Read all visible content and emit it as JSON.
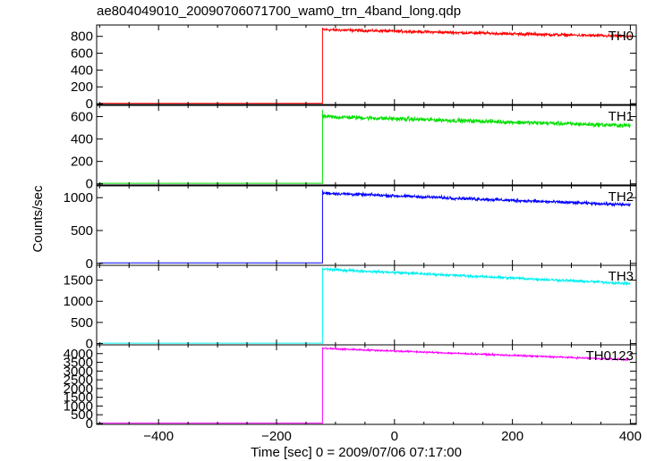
{
  "chart_data": {
    "type": "line",
    "title": "ae804049010_20090706071700_wam0_trn_4band_long.qdp",
    "xlabel": "Time [sec] 0 = 2009/07/06 07:17:00",
    "ylabel": "Counts/sec",
    "xlim": [
      -505,
      410
    ],
    "xticks": [
      -400,
      -200,
      0,
      200,
      400
    ],
    "xtick_labels": [
      "−400",
      "−200",
      "0",
      "200",
      "400"
    ],
    "grid": false,
    "legend": "none",
    "panels": [
      {
        "name": "TH0",
        "color": "#ff0000",
        "ylim": [
          -10,
          935
        ],
        "yticks": [
          0,
          200,
          400,
          600,
          800
        ],
        "x_start": -500,
        "x_jump": -122,
        "x_end": 400,
        "pre_level": 5,
        "post_start": 880,
        "post_end": 800,
        "noise": 25,
        "spike": 900
      },
      {
        "name": "TH1",
        "color": "#00e000",
        "ylim": [
          -10,
          700
        ],
        "yticks": [
          0,
          200,
          400,
          600
        ],
        "x_start": -500,
        "x_jump": -122,
        "x_end": 400,
        "pre_level": 5,
        "post_start": 600,
        "post_end": 520,
        "noise": 28,
        "spike": 660
      },
      {
        "name": "TH2",
        "color": "#0000ff",
        "ylim": [
          -30,
          1180
        ],
        "yticks": [
          0,
          500,
          1000
        ],
        "x_start": -500,
        "x_jump": -122,
        "x_end": 400,
        "pre_level": 8,
        "post_start": 1070,
        "post_end": 890,
        "noise": 35,
        "spike": 1120
      },
      {
        "name": "TH3",
        "color": "#00f0f0",
        "ylim": [
          -30,
          1850
        ],
        "yticks": [
          0,
          500,
          1000,
          1500
        ],
        "x_start": -500,
        "x_jump": -122,
        "x_end": 400,
        "pre_level": 10,
        "post_start": 1760,
        "post_end": 1420,
        "noise": 45,
        "spike": 1800
      },
      {
        "name": "TH0123",
        "color": "#ff00ff",
        "ylim": [
          -50,
          4500
        ],
        "yticks": [
          0,
          500,
          1000,
          1500,
          2000,
          2500,
          3000,
          3500,
          4000
        ],
        "x_start": -500,
        "x_jump": -122,
        "x_end": 400,
        "pre_level": 20,
        "post_start": 4300,
        "post_end": 3650,
        "noise": 70,
        "spike": 4350
      }
    ]
  }
}
